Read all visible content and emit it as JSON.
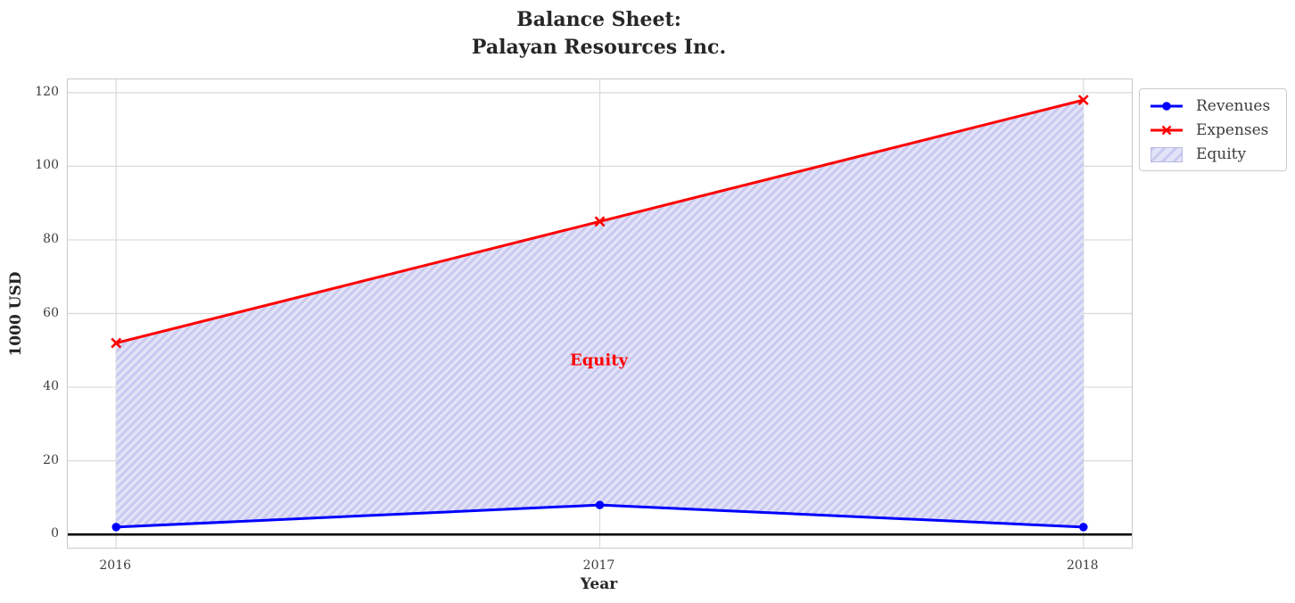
{
  "chart_data": {
    "type": "line",
    "title": "Balance Sheet:\nPalayan Resources Inc.",
    "title_lines": [
      "Balance Sheet:",
      "Palayan Resources Inc."
    ],
    "xlabel": "Year",
    "ylabel": "1000 USD",
    "x": [
      2016,
      2017,
      2018
    ],
    "x_tick_labels": [
      "2016",
      "2017",
      "2018"
    ],
    "y_ticks": [
      0,
      20,
      40,
      60,
      80,
      100,
      120
    ],
    "y_tick_labels": [
      "0",
      "20",
      "40",
      "60",
      "80",
      "100",
      "120"
    ],
    "xlim": [
      2015.9,
      2018.1
    ],
    "ylim": [
      -3.6,
      123.6
    ],
    "grid": true,
    "series": [
      {
        "name": "Revenues",
        "marker": "circle",
        "color": "#0000ff",
        "values": [
          2,
          8,
          2
        ]
      },
      {
        "name": "Expenses",
        "marker": "x",
        "color": "#ff0000",
        "values": [
          52,
          85,
          118
        ]
      }
    ],
    "fill_between": {
      "name": "Equity",
      "lower_series": "Revenues",
      "upper_series": "Expenses",
      "fill_color": "#e3e3f8",
      "hatch_color": "#c9c9f0",
      "hatch": "/"
    },
    "baseline": {
      "y": 0,
      "color": "#000000"
    },
    "annotation": {
      "text": "Equity",
      "x": 2017,
      "y": 47,
      "color": "#ff0000"
    },
    "legend": {
      "position": "outside-upper-right",
      "entries": [
        {
          "label": "Revenues",
          "swatch": "line-circle",
          "color": "#0000ff"
        },
        {
          "label": "Expenses",
          "swatch": "line-x",
          "color": "#ff0000"
        },
        {
          "label": "Equity",
          "swatch": "hatch-patch",
          "fill_color": "#e3e3f8",
          "hatch_color": "#c9c9f0"
        }
      ]
    }
  },
  "colors": {
    "grid": "#d9d9d9",
    "spine": "#c9c9c9",
    "title": "#262626",
    "tick_label": "#3d3d3d",
    "legend_border": "#cccccc",
    "background": "#ffffff"
  }
}
